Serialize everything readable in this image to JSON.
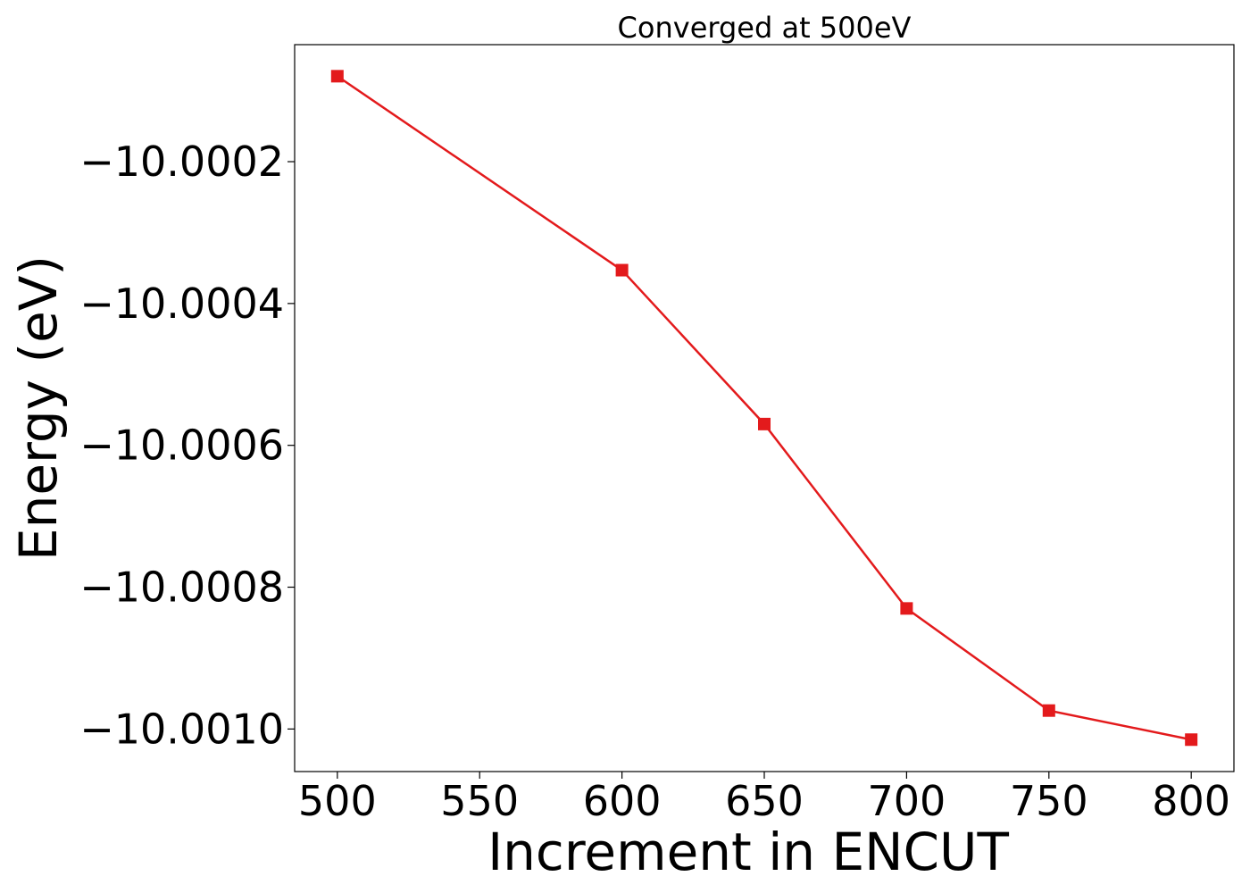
{
  "chart_data": {
    "type": "line",
    "title": "Converged at 500eV",
    "xlabel": "Increment in ENCUT",
    "ylabel": "Energy (eV)",
    "x": [
      500,
      600,
      650,
      700,
      750,
      800
    ],
    "series": [
      {
        "values": [
          -10.0000795,
          -10.000353,
          -10.00057,
          -10.00083,
          -10.000974,
          -10.001015
        ],
        "color": "#e31a1c",
        "marker": "square"
      }
    ],
    "x_ticks": [
      500,
      550,
      600,
      650,
      700,
      750,
      800
    ],
    "x_tick_labels": [
      "500",
      "550",
      "600",
      "650",
      "700",
      "750",
      "800"
    ],
    "y_ticks": [
      -10.0002,
      -10.0004,
      -10.0006,
      -10.0008,
      -10.001
    ],
    "y_tick_labels": [
      "−10.0002",
      "−10.0004",
      "−10.0006",
      "−10.0008",
      "−10.0010"
    ],
    "xlim": [
      485,
      815
    ],
    "ylim": [
      -10.00106,
      -10.000035
    ],
    "grid": false,
    "legend": "none"
  }
}
